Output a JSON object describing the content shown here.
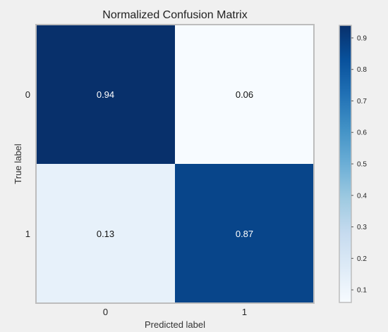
{
  "chart_data": {
    "type": "heatmap",
    "title": "Normalized Confusion Matrix",
    "xlabel": "Predicted label",
    "ylabel": "True label",
    "x_categories": [
      "0",
      "1"
    ],
    "y_categories": [
      "0",
      "1"
    ],
    "matrix": [
      [
        0.94,
        0.06
      ],
      [
        0.13,
        0.87
      ]
    ],
    "cell_labels": [
      [
        "0.94",
        "0.06"
      ],
      [
        "0.13",
        "0.87"
      ]
    ],
    "colormap": "Blues",
    "colorbar": {
      "range": [
        0.06,
        0.94
      ],
      "ticks": [
        0.1,
        0.2,
        0.3,
        0.4,
        0.5,
        0.6,
        0.7,
        0.8,
        0.9
      ],
      "tick_labels": [
        "0.1",
        "0.2",
        "0.3",
        "0.4",
        "0.5",
        "0.6",
        "0.7",
        "0.8",
        "0.9"
      ]
    },
    "grid": false
  }
}
